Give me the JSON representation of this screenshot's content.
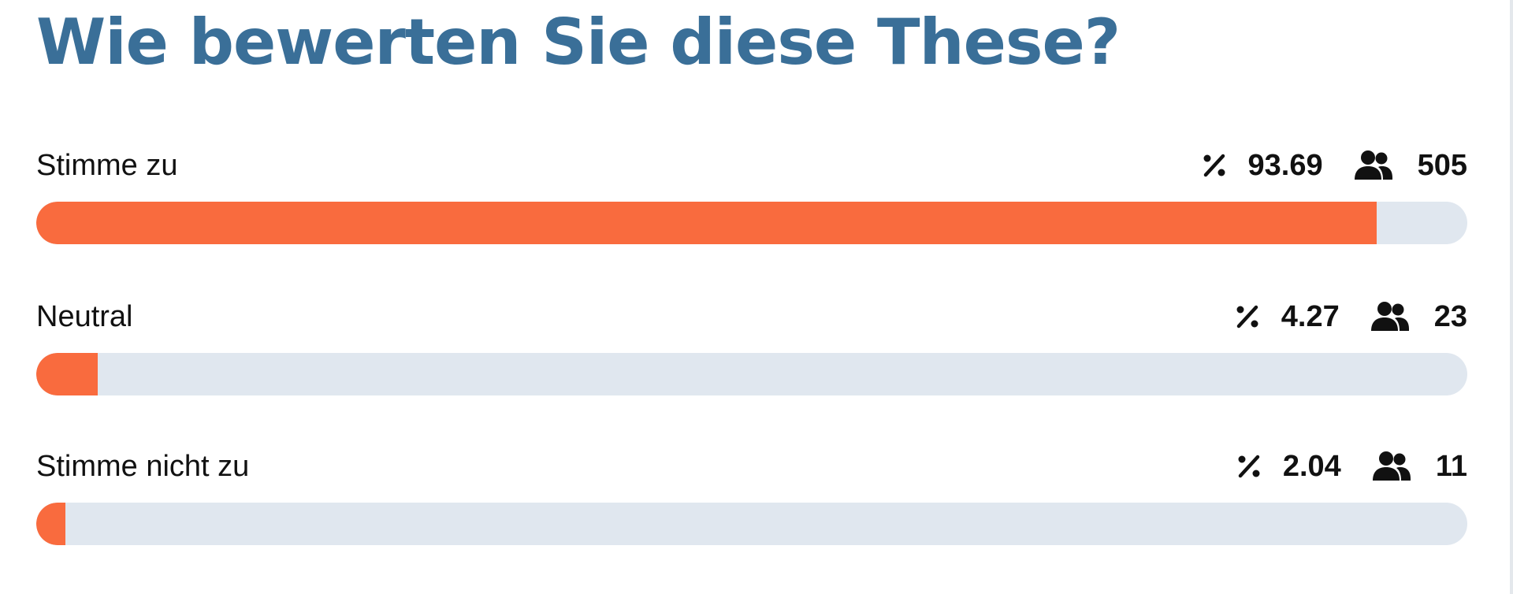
{
  "poll": {
    "title": "Wie bewerten Sie diese These?",
    "accent_color": "#3a6f98",
    "bar_color": "#f96b3e",
    "track_color": "#e0e7ef",
    "options": [
      {
        "label": "Stimme zu",
        "percent_text": "93.69",
        "count_text": "505",
        "percent": 93.69
      },
      {
        "label": "Neutral",
        "percent_text": "4.27",
        "count_text": "23",
        "percent": 4.27
      },
      {
        "label": "Stimme nicht zu",
        "percent_text": "2.04",
        "count_text": "11",
        "percent": 2.04
      }
    ],
    "icons": {
      "percent": "percent-icon",
      "users": "users-icon"
    }
  }
}
